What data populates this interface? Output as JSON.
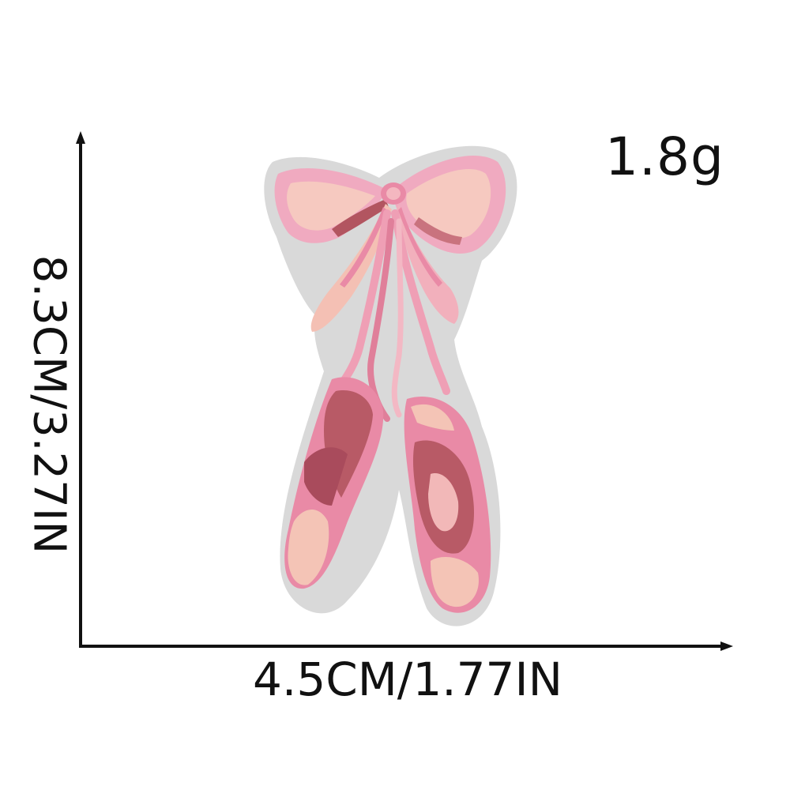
{
  "weight": "1.8g",
  "width_label": "4.5CM/1.77IN",
  "height_label": "8.3CM/3.27IN",
  "colors": {
    "felt": "#d6d6d6",
    "pink_light": "#f2b8b8",
    "pink_mid": "#e98aa6",
    "pink_dark": "#b85a66",
    "pink_shadow": "#a94b5c",
    "peach": "#f4c4b6"
  },
  "product": "embroidered-ballet-shoes-bow-patch"
}
